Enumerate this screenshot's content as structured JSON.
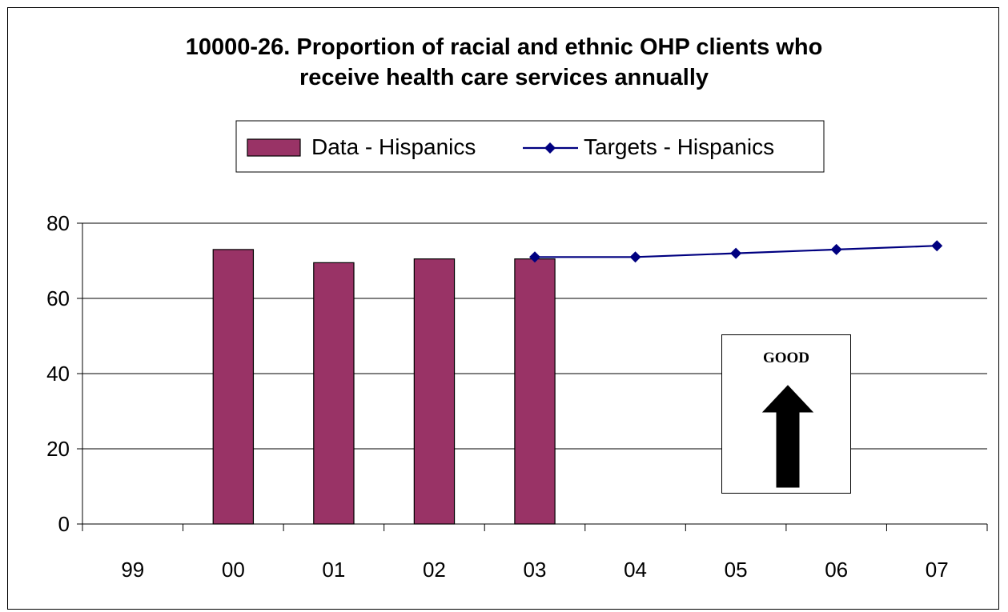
{
  "chart_data": {
    "type": "bar",
    "title_lines": [
      "10000-26. Proportion of racial and ethnic OHP clients who",
      "receive health care services annually"
    ],
    "categories": [
      "99",
      "00",
      "01",
      "02",
      "03",
      "04",
      "05",
      "06",
      "07"
    ],
    "series": [
      {
        "name": "Data - Hispanics",
        "type": "bar",
        "color": "#993366",
        "values": [
          null,
          73,
          69.5,
          70.5,
          70.5,
          null,
          null,
          null,
          null
        ]
      },
      {
        "name": "Targets - Hispanics",
        "type": "line",
        "color": "#000080",
        "values": [
          null,
          null,
          null,
          null,
          71,
          71,
          72,
          73,
          74
        ]
      }
    ],
    "ylim": [
      0,
      80
    ],
    "yticks": [
      0,
      20,
      40,
      60,
      80
    ],
    "grid": true,
    "legend": "top-center",
    "annotation": {
      "text": "GOOD",
      "arrow": "up"
    }
  }
}
